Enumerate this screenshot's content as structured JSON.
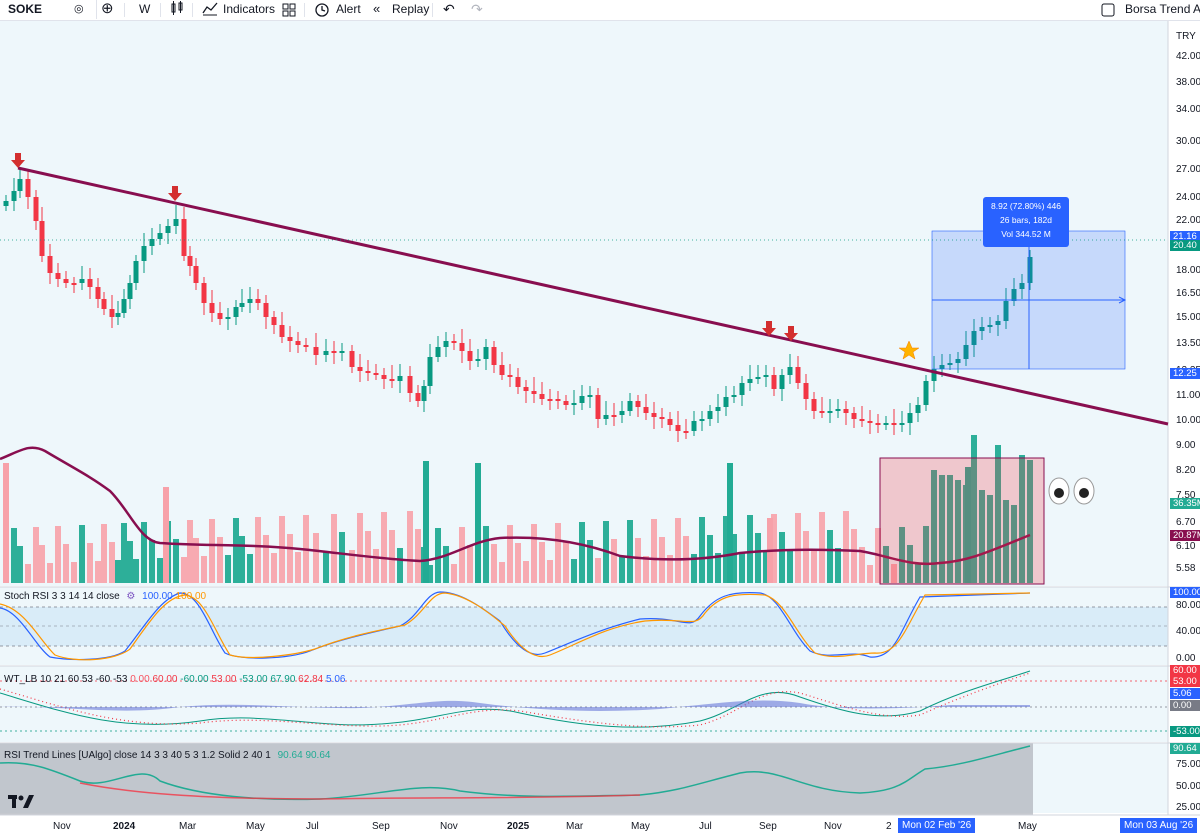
{
  "toolbar": {
    "symbol": "SOKE",
    "interval": "W",
    "indicators_label": "Indicators",
    "alert_label": "Alert",
    "replay_label": "Replay",
    "layout_name": "Borsa Trend A..."
  },
  "price_axis": {
    "currency": "TRY",
    "ticks": [
      "42.00",
      "38.00",
      "34.00",
      "30.00",
      "27.00",
      "24.00",
      "22.00",
      "18.00",
      "16.50",
      "15.00",
      "13.50",
      "12.25",
      "11.00",
      "10.00",
      "9.00",
      "8.20",
      "7.50",
      "6.70",
      "6.10",
      "5.58"
    ],
    "tags": [
      {
        "value": "21.16",
        "color": "#2962ff"
      },
      {
        "value": "20.40",
        "color": "#089981"
      },
      {
        "value": "12.25",
        "color": "#2962ff"
      },
      {
        "value": "36.35M",
        "color": "#22ab94"
      },
      {
        "value": "20.87M",
        "color": "#880e4f"
      }
    ]
  },
  "measure": {
    "line1": "8.92 (72.80%) 446",
    "line2": "26 bars, 182d",
    "line3": "Vol 344.52 M"
  },
  "stoch": {
    "label": "Stoch RSI 3 3 14 14 close",
    "k": "100.00",
    "d": "100.00",
    "ticks": [
      "80.00",
      "40.00",
      "0.00"
    ],
    "tag": "100.00",
    "k_color": "#2962ff",
    "d_color": "#ff9800"
  },
  "wt": {
    "label": "WT_LB 10 21 60 53 -60 -53",
    "values": [
      {
        "text": "0.00",
        "color": "#f7525f"
      },
      {
        "text": "60.00",
        "color": "#f23645"
      },
      {
        "text": "-60.00",
        "color": "#089981"
      },
      {
        "text": "53.00",
        "color": "#f23645"
      },
      {
        "text": "-53.00",
        "color": "#089981"
      },
      {
        "text": "67.90",
        "color": "#089981"
      },
      {
        "text": "62.84",
        "color": "#f23645"
      },
      {
        "text": "5.06",
        "color": "#2962ff"
      }
    ],
    "tags": [
      {
        "value": "60.00",
        "color": "#f23645"
      },
      {
        "value": "53.00",
        "color": "#f23645"
      },
      {
        "value": "5.06",
        "color": "#2962ff"
      },
      {
        "value": "0.00",
        "color": "#787b86"
      },
      {
        "value": "-53.00",
        "color": "#089981"
      }
    ]
  },
  "rsi": {
    "label": "RSI Trend Lines [UAlgo] close 14 3 3 40 5 3 1.2 Solid 2 40 1",
    "v1": "90.64",
    "v2": "90.64",
    "ticks": [
      "75.00",
      "50.00",
      "25.00"
    ],
    "tag": "90.64"
  },
  "time_axis": {
    "labels": [
      "Nov",
      "2024",
      "Mar",
      "May",
      "Jul",
      "Sep",
      "Nov",
      "2025",
      "Mar",
      "May",
      "Jul",
      "Sep",
      "Nov",
      "2",
      "May",
      "ep"
    ],
    "cursor_start": "Mon 02 Feb '26",
    "cursor_end": "Mon 03 Aug '26"
  },
  "colors": {
    "up": "#089981",
    "down": "#f23645",
    "trendline": "#880e4f",
    "chart_bg": "#eef7fb",
    "measure": "#2962ff"
  }
}
